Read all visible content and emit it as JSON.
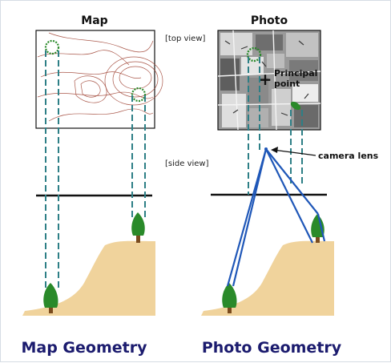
{
  "headings": {
    "map": "Map",
    "photo": "Photo"
  },
  "notes": {
    "top_view": "[top view]",
    "side_view": "[side view]"
  },
  "labels": {
    "principal_line1": "Principal",
    "principal_line2": "point",
    "camera_lens": "camera lens",
    "principal_mark": "+"
  },
  "captions": {
    "map_geometry": "Map Geometry",
    "photo_geometry": "Photo Geometry"
  },
  "colors": {
    "caption": "#1b1b6e",
    "projection_dashed": "#2d7f86",
    "perspective_rays": "#1f57b8",
    "terrain": "#f0d39c",
    "tree": "#2a8a2a",
    "contours": "#9b3a2a",
    "ground_line": "#111111"
  }
}
